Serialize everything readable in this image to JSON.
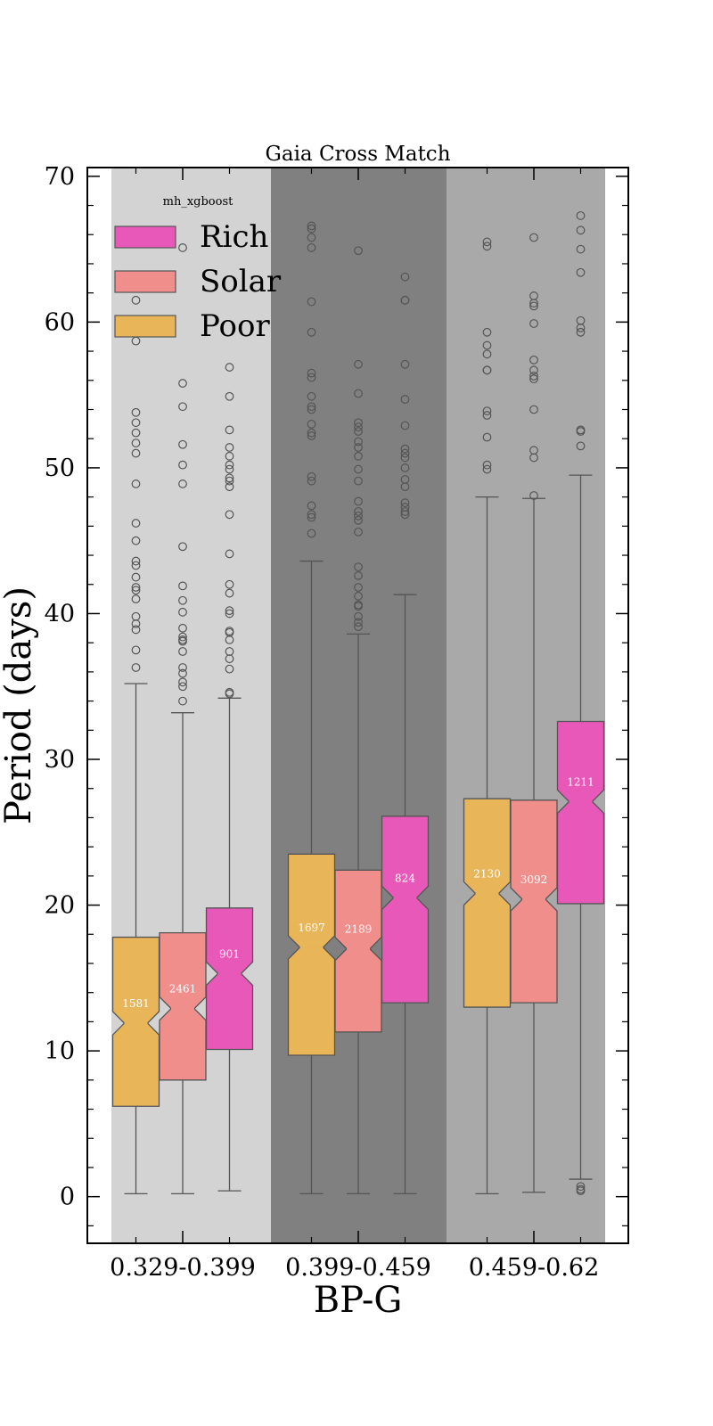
{
  "chart_data": {
    "type": "boxplot",
    "title": "Gaia Cross Match",
    "xlabel": "BP-G",
    "ylabel": "Period (days)",
    "ylim": [
      -3.2,
      70.6
    ],
    "yticks": [
      0,
      10,
      20,
      30,
      40,
      50,
      60,
      70
    ],
    "categories": [
      "0.329-0.399",
      "0.399-0.459",
      "0.459-0.62"
    ],
    "category_backgrounds": [
      "#d3d3d3",
      "#808080",
      "#a9a9a9"
    ],
    "legend": {
      "title": "mh_xgboost",
      "placement": "top-left",
      "entries": [
        {
          "name": "Rich",
          "color": "#e858b8"
        },
        {
          "name": "Solar",
          "color": "#f08e8c"
        },
        {
          "name": "Poor",
          "color": "#e8b558"
        }
      ]
    },
    "series_order": [
      "Poor",
      "Solar",
      "Rich"
    ],
    "boxes": [
      {
        "category": "0.329-0.399",
        "series": "Poor",
        "count": "1581",
        "whisker_low": 0.2,
        "q1": 6.2,
        "median": 11.9,
        "q3": 17.8,
        "whisker_high": 35.2,
        "outliers": [
          36.3,
          37.5,
          38.9,
          39.3,
          39.8,
          41.0,
          41.6,
          41.8,
          42.5,
          43.3,
          43.6,
          45.0,
          46.2,
          48.9,
          51.0,
          51.7,
          52.4,
          53.1,
          53.8,
          58.7,
          61.5
        ]
      },
      {
        "category": "0.329-0.399",
        "series": "Solar",
        "count": "2461",
        "whisker_low": 0.2,
        "q1": 8.0,
        "median": 12.9,
        "q3": 18.1,
        "whisker_high": 33.2,
        "outliers": [
          34.0,
          35.0,
          35.3,
          35.9,
          36.3,
          37.4,
          38.1,
          38.2,
          38.4,
          39.0,
          40.1,
          40.9,
          41.9,
          44.6,
          48.9,
          50.2,
          51.6,
          54.2,
          55.8,
          65.1
        ]
      },
      {
        "category": "0.329-0.399",
        "series": "Rich",
        "count": "901",
        "whisker_low": 0.4,
        "q1": 10.1,
        "median": 15.3,
        "q3": 19.8,
        "whisker_high": 34.2,
        "outliers": [
          34.5,
          34.6,
          36.2,
          36.9,
          37.4,
          38.2,
          38.7,
          38.8,
          40.0,
          40.2,
          41.4,
          42.0,
          44.1,
          46.8,
          48.7,
          49.1,
          49.3,
          49.9,
          50.2,
          50.8,
          51.4,
          52.6,
          54.9,
          56.9
        ]
      },
      {
        "category": "0.399-0.459",
        "series": "Poor",
        "count": "1697",
        "whisker_low": 0.2,
        "q1": 9.7,
        "median": 17.1,
        "q3": 23.5,
        "whisker_high": 43.6,
        "outliers": [
          45.5,
          46.6,
          46.8,
          47.4,
          49.1,
          49.4,
          52.2,
          52.4,
          53.0,
          54.0,
          54.2,
          54.9,
          56.2,
          56.5,
          59.3,
          61.4,
          65.1,
          65.8,
          66.4,
          66.6
        ]
      },
      {
        "category": "0.399-0.459",
        "series": "Solar",
        "count": "2189",
        "whisker_low": 0.2,
        "q1": 11.3,
        "median": 17.0,
        "q3": 22.4,
        "whisker_high": 38.6,
        "outliers": [
          39.1,
          39.4,
          39.8,
          40.5,
          40.6,
          41.2,
          41.8,
          42.6,
          43.2,
          45.6,
          46.4,
          46.7,
          47.0,
          47.7,
          49.1,
          49.9,
          50.8,
          51.4,
          51.8,
          52.5,
          52.8,
          53.1,
          55.1,
          57.1,
          64.9
        ]
      },
      {
        "category": "0.399-0.459",
        "series": "Rich",
        "count": "824",
        "whisker_low": 0.2,
        "q1": 13.3,
        "median": 20.5,
        "q3": 26.1,
        "whisker_high": 41.3,
        "outliers": [
          46.8,
          47.0,
          47.3,
          47.6,
          48.7,
          49.2,
          50.0,
          50.7,
          51.0,
          51.3,
          52.9,
          54.7,
          57.1,
          61.5,
          61.5,
          63.1
        ]
      },
      {
        "category": "0.459-0.62",
        "series": "Poor",
        "count": "2130",
        "whisker_low": 0.2,
        "q1": 13.0,
        "median": 20.8,
        "q3": 27.3,
        "whisker_high": 48.0,
        "outliers": [
          49.9,
          50.2,
          52.1,
          53.6,
          53.9,
          56.7,
          56.7,
          57.8,
          58.4,
          59.3,
          65.2,
          65.5
        ]
      },
      {
        "category": "0.459-0.62",
        "series": "Solar",
        "count": "3092",
        "whisker_low": 0.3,
        "q1": 13.3,
        "median": 20.4,
        "q3": 27.2,
        "whisker_high": 47.9,
        "outliers": [
          48.1,
          50.7,
          51.2,
          54.0,
          56.1,
          56.3,
          56.7,
          57.4,
          59.9,
          61.1,
          61.3,
          61.8,
          65.8
        ]
      },
      {
        "category": "0.459-0.62",
        "series": "Rich",
        "count": "1211",
        "whisker_low": 1.2,
        "q1": 20.1,
        "median": 27.1,
        "q3": 32.6,
        "whisker_high": 49.5,
        "outliers": [
          0.4,
          0.5,
          0.7,
          51.5,
          52.5,
          52.6,
          59.3,
          59.6,
          60.1,
          63.4,
          65.0,
          66.3,
          67.3
        ]
      }
    ]
  }
}
